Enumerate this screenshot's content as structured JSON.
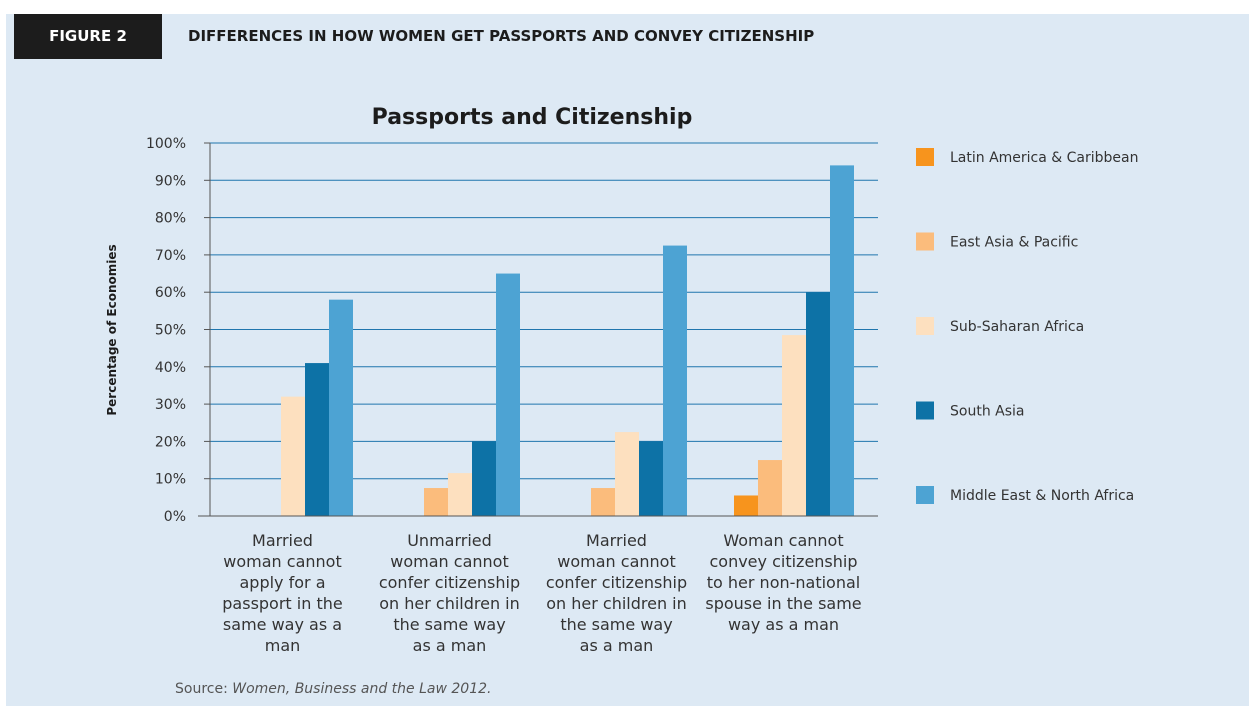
{
  "figure": {
    "label": "FIGURE 2",
    "title": "DIFFERENCES IN HOW WOMEN GET PASSPORTS AND CONVEY CITIZENSHIP"
  },
  "source": {
    "prefix": "Source: ",
    "title": "Women, Business and the Law 2012."
  },
  "colors": {
    "header_bg": "#1c1c1c",
    "panel_bg": "#dde9f4",
    "gridline": "#1f75ad"
  },
  "chart_data": {
    "type": "bar",
    "title": "Passports and Citizenship",
    "ylabel": "Percentage of Economies",
    "xlabel": "",
    "ylim": [
      0,
      100
    ],
    "yticks": [
      0,
      10,
      20,
      30,
      40,
      50,
      60,
      70,
      80,
      90,
      100
    ],
    "ytick_suffix": "%",
    "grid": true,
    "legend_position": "right",
    "categories": [
      [
        "Married",
        "woman cannot",
        "apply for a",
        "passport in the",
        "same way as a",
        "man"
      ],
      [
        "Unmarried",
        "woman cannot",
        "confer citizenship",
        "on her children in",
        "the same way",
        "as a man"
      ],
      [
        "Married",
        "woman cannot",
        "confer citizenship",
        "on her children in",
        "the same way",
        "as a man"
      ],
      [
        "Woman cannot",
        "convey citizenship",
        "to her non-national",
        "spouse in the same",
        "way as a man"
      ]
    ],
    "series": [
      {
        "name": "Latin America & Caribbean",
        "color": "#f7941d",
        "values": [
          0,
          0,
          0,
          5.5
        ]
      },
      {
        "name": "East Asia & Pacific",
        "color": "#fbbc7c",
        "values": [
          0,
          7.5,
          7.5,
          15
        ]
      },
      {
        "name": "Sub-Saharan Africa",
        "color": "#fde0bf",
        "values": [
          32,
          11.5,
          22.5,
          48.5
        ]
      },
      {
        "name": "South Asia",
        "color": "#0d72a6",
        "values": [
          41,
          20,
          20,
          60
        ]
      },
      {
        "name": "Middle East & North Africa",
        "color": "#4da3d3",
        "values": [
          58,
          65,
          72.5,
          94
        ]
      }
    ]
  }
}
